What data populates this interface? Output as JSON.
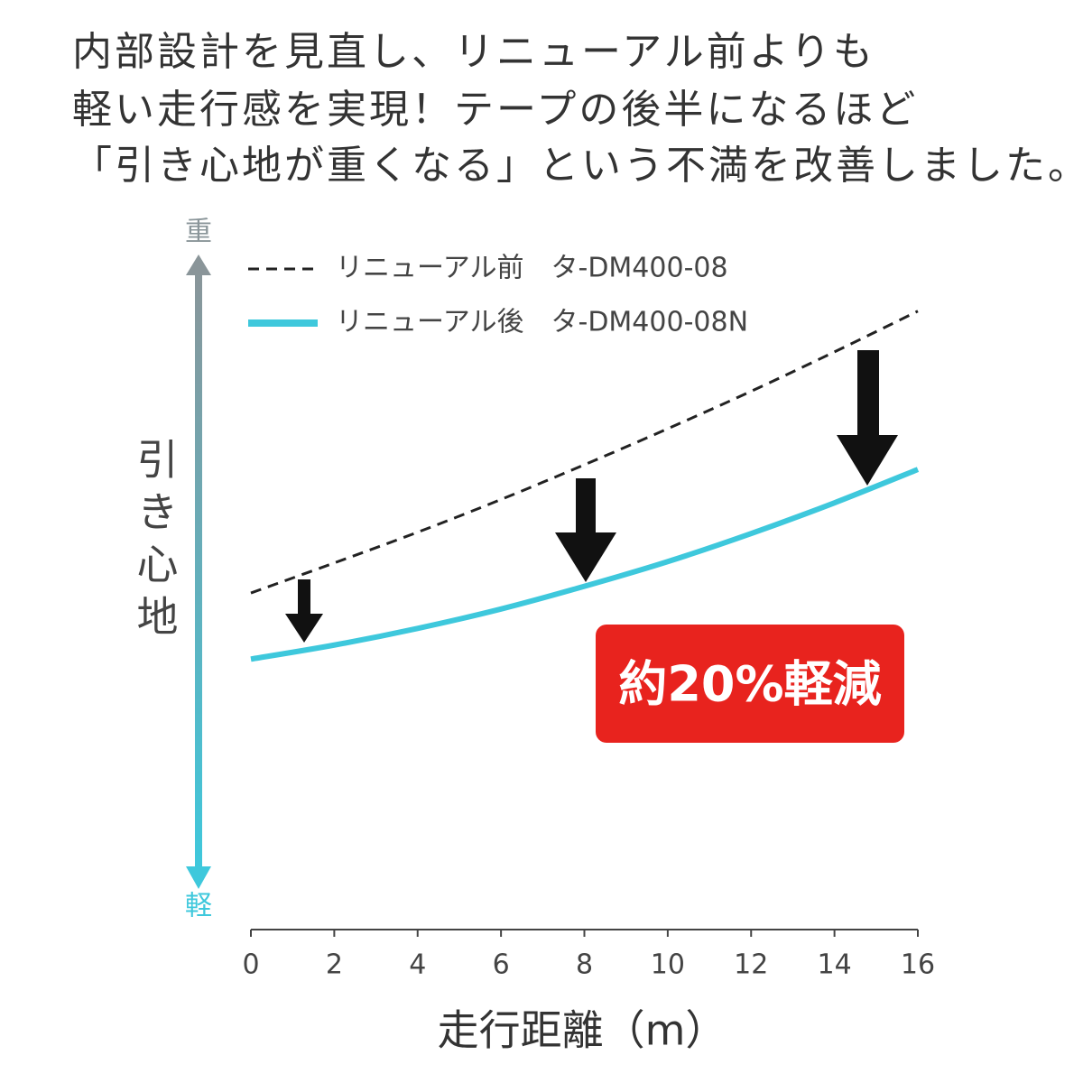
{
  "chart_data": {
    "type": "line",
    "title": [
      "内部設計を見直し、リニューアル前よりも",
      "軽い走行感を実現！テープの後半になるほど",
      "「引き心地が重くなる」という不満を改善しました。"
    ],
    "xlabel": "走行距離（m）",
    "ylabel": "引き心地",
    "y_top_label": "重",
    "y_bottom_label": "軽",
    "annotation": "約20%軽減",
    "x": [
      0,
      2,
      4,
      6,
      8,
      10,
      12,
      14,
      16
    ],
    "series": [
      {
        "name": "リニューアル前　タ-DM400-08",
        "color": "#222222",
        "dashed": true,
        "values": [
          50.4,
          54.9,
          59.5,
          64.4,
          69.6,
          75.0,
          80.6,
          86.5,
          92.6
        ]
      },
      {
        "name": "リニューアル後　タ-DM400-08N",
        "color": "#3ec8dc",
        "dashed": false,
        "values": [
          40.5,
          42.6,
          45.1,
          48.0,
          51.4,
          55.1,
          59.3,
          63.9,
          68.9
        ]
      }
    ],
    "xlim": [
      0,
      16
    ],
    "xticks": [
      0,
      2,
      4,
      6,
      8,
      10,
      12,
      14,
      16
    ],
    "ylim": [
      0,
      100
    ],
    "grid": false,
    "legend": "top-left"
  }
}
